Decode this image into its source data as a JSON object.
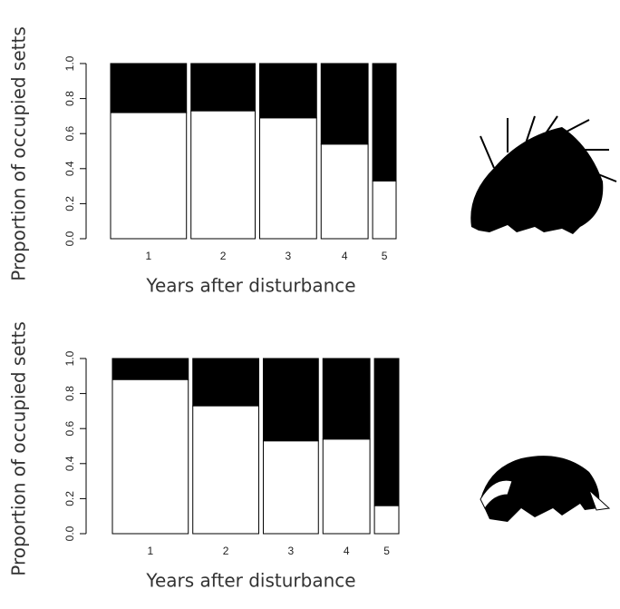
{
  "chart_data": [
    {
      "type": "bar",
      "stacked": true,
      "y_label": "Proportion of occupied setts",
      "x_label": "Years after disturbance",
      "categories": [
        "1",
        "2",
        "3",
        "4",
        "5"
      ],
      "widths": [
        84,
        71,
        63,
        52,
        26
      ],
      "series": [
        {
          "color": "#ffffff",
          "values": [
            0.72,
            0.73,
            0.69,
            0.54,
            0.33
          ]
        },
        {
          "color": "#000000",
          "values": [
            0.28,
            0.27,
            0.31,
            0.46,
            0.67
          ]
        }
      ],
      "ylim": [
        0,
        1
      ],
      "yticks": [
        {
          "value": 0,
          "label": "0.0"
        },
        0.2,
        0.4,
        0.6,
        0.8,
        {
          "value": 1,
          "label": "1.0"
        }
      ]
    },
    {
      "type": "bar",
      "stacked": true,
      "y_label": "Proportion of occupied setts",
      "x_label": "Years after disturbance",
      "categories": [
        "1",
        "2",
        "3",
        "4",
        "5"
      ],
      "widths": [
        84,
        73,
        61,
        52,
        27
      ],
      "series": [
        {
          "color": "#ffffff",
          "values": [
            0.88,
            0.73,
            0.53,
            0.54,
            0.16
          ]
        },
        {
          "color": "#000000",
          "values": [
            0.12,
            0.27,
            0.47,
            0.46,
            0.84
          ]
        }
      ],
      "ylim": [
        0,
        1
      ],
      "yticks": [
        {
          "value": 0,
          "label": "0.0"
        },
        0.2,
        0.4,
        0.6,
        0.8,
        {
          "value": 1,
          "label": "1.0"
        }
      ]
    }
  ]
}
